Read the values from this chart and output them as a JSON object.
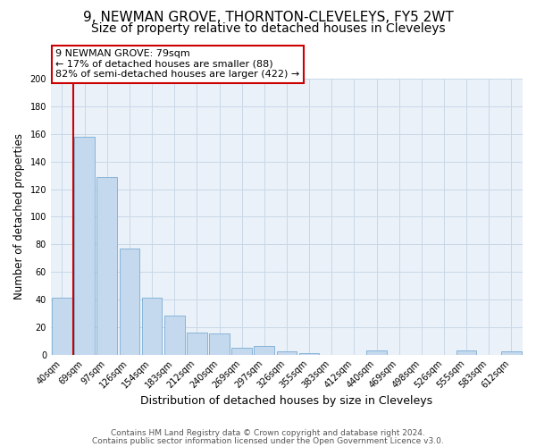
{
  "title": "9, NEWMAN GROVE, THORNTON-CLEVELEYS, FY5 2WT",
  "subtitle": "Size of property relative to detached houses in Cleveleys",
  "xlabel": "Distribution of detached houses by size in Cleveleys",
  "ylabel": "Number of detached properties",
  "bar_labels": [
    "40sqm",
    "69sqm",
    "97sqm",
    "126sqm",
    "154sqm",
    "183sqm",
    "212sqm",
    "240sqm",
    "269sqm",
    "297sqm",
    "326sqm",
    "355sqm",
    "383sqm",
    "412sqm",
    "440sqm",
    "469sqm",
    "498sqm",
    "526sqm",
    "555sqm",
    "583sqm",
    "612sqm"
  ],
  "bar_values": [
    41,
    158,
    129,
    77,
    41,
    28,
    16,
    15,
    5,
    6,
    2,
    1,
    0,
    0,
    3,
    0,
    0,
    0,
    3,
    0,
    2
  ],
  "bar_color": "#c5d9ee",
  "bar_edgecolor": "#7aadd4",
  "ylim": [
    0,
    200
  ],
  "yticks": [
    0,
    20,
    40,
    60,
    80,
    100,
    120,
    140,
    160,
    180,
    200
  ],
  "vline_x": 0.5,
  "vline_color": "#cc0000",
  "annotation_title": "9 NEWMAN GROVE: 79sqm",
  "annotation_line1": "← 17% of detached houses are smaller (88)",
  "annotation_line2": "82% of semi-detached houses are larger (422) →",
  "annotation_box_edgecolor": "#cc0000",
  "footer_line1": "Contains HM Land Registry data © Crown copyright and database right 2024.",
  "footer_line2": "Contains public sector information licensed under the Open Government Licence v3.0.",
  "bg_color": "#ffffff",
  "plot_bg_color": "#eaf1f8",
  "grid_color": "#c8d8e8",
  "title_fontsize": 11,
  "subtitle_fontsize": 10,
  "xlabel_fontsize": 9,
  "ylabel_fontsize": 8.5,
  "tick_fontsize": 7,
  "ann_fontsize": 8,
  "footer_fontsize": 6.5
}
